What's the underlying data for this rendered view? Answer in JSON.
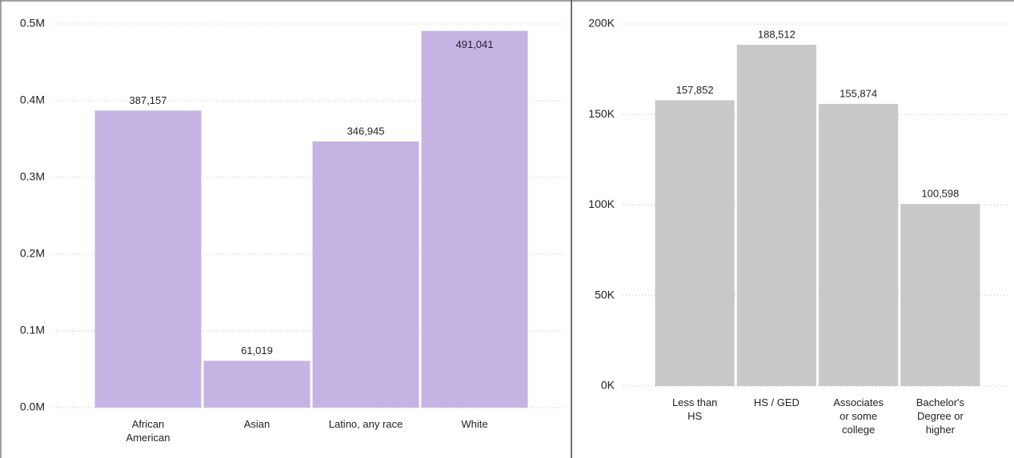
{
  "chart_data": [
    {
      "type": "bar",
      "categories": [
        "African American",
        "Asian",
        "Latino, any race",
        "White"
      ],
      "values": [
        387157,
        61019,
        346945,
        491041
      ],
      "value_labels": [
        "387,157",
        "61,019",
        "346,945",
        "491,041"
      ],
      "color": "#c5b4e3",
      "ylim": [
        0,
        500000
      ],
      "yticks": [
        {
          "value": 0,
          "label": "0.0M"
        },
        {
          "value": 100000,
          "label": "0.1M"
        },
        {
          "value": 200000,
          "label": "0.2M"
        },
        {
          "value": 300000,
          "label": "0.3M"
        },
        {
          "value": 400000,
          "label": "0.4M"
        },
        {
          "value": 500000,
          "label": "0.5M"
        }
      ],
      "grid": true
    },
    {
      "type": "bar",
      "categories": [
        "Less than HS",
        "HS / GED",
        "Associates or some college",
        "Bachelor's Degree or higher"
      ],
      "values": [
        157852,
        188512,
        155874,
        100598
      ],
      "value_labels": [
        "157,852",
        "188,512",
        "155,874",
        "100,598"
      ],
      "color": "#c8c8c8",
      "ylim": [
        0,
        200000
      ],
      "yticks": [
        {
          "value": 0,
          "label": "0K"
        },
        {
          "value": 50000,
          "label": "50K"
        },
        {
          "value": 100000,
          "label": "100K"
        },
        {
          "value": 150000,
          "label": "150K"
        },
        {
          "value": 200000,
          "label": "200K"
        }
      ],
      "grid": true
    }
  ]
}
